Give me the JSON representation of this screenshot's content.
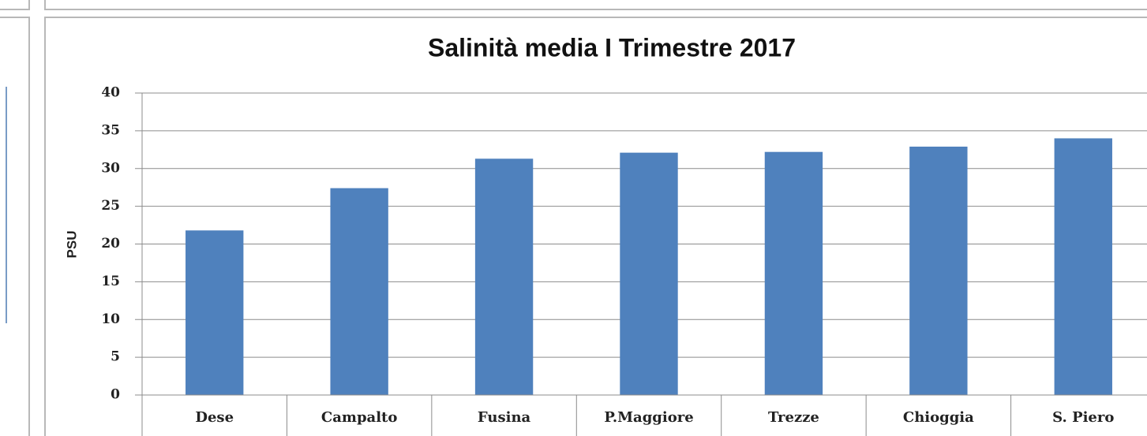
{
  "chart_data": {
    "type": "bar",
    "title": "Salinità media I Trimestre 2017",
    "y_label": "PSU",
    "categories": [
      "Dese",
      "Campalto",
      "Fusina",
      "P.Maggiore",
      "Trezze",
      "Chioggia",
      "S. Piero"
    ],
    "values": [
      21.8,
      27.4,
      31.3,
      32.1,
      32.2,
      32.9,
      34.0
    ],
    "color": "#4f81bd",
    "ylim": [
      0,
      40
    ],
    "yticks": [
      0,
      5,
      10,
      15,
      20,
      25,
      30,
      35,
      40
    ],
    "grid": true
  }
}
